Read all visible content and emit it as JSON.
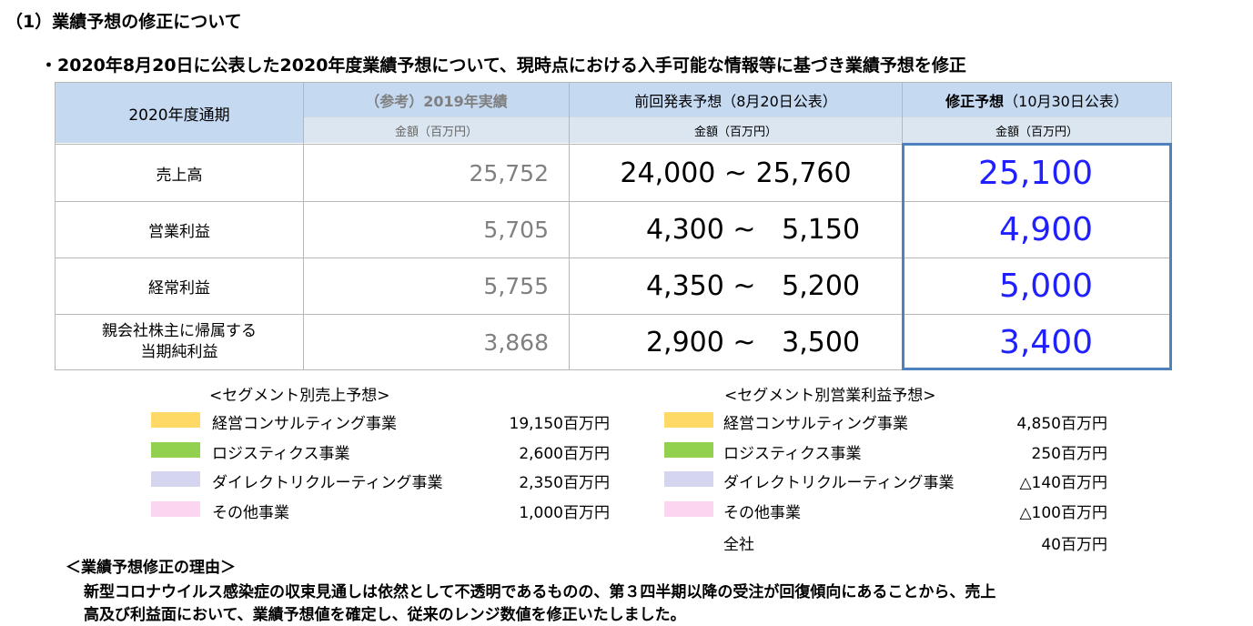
{
  "heading": {
    "title": "（1）業績予想の修正について",
    "subtitle": "・2020年8月20日に公表した2020年度業績予想について、現時点における入手可能な情報等に基づき業績予想を修正"
  },
  "table": {
    "corner_label": "2020年度通期",
    "columns": [
      {
        "header": "（参考）2019年実績",
        "unit": "金額（百万円）"
      },
      {
        "header": "前回発表予想（8月20日公表）",
        "unit": "金額（百万円）"
      },
      {
        "header_bold": "修正予想",
        "header_rest": "（10月30日公表）",
        "unit": "金額（百万円）"
      }
    ],
    "rows": [
      {
        "label": "売上高",
        "prev_actual": "25,752",
        "range_low": "24,000",
        "range_sep": "~",
        "range_high": "25,760",
        "revised": "25,100"
      },
      {
        "label": "営業利益",
        "prev_actual": "5,705",
        "range_low": "4,300",
        "range_sep": "~",
        "range_high": "5,150",
        "revised": "4,900"
      },
      {
        "label": "経常利益",
        "prev_actual": "5,755",
        "range_low": "4,350",
        "range_sep": "~",
        "range_high": "5,200",
        "revised": "5,000"
      },
      {
        "label_line1": "親会社株主に帰属する",
        "label_line2": "当期純利益",
        "prev_actual": "3,868",
        "range_low": "2,900",
        "range_sep": "~",
        "range_high": "3,500",
        "revised": "3,400"
      }
    ]
  },
  "segments": {
    "sales": {
      "title": "<セグメント別売上予想>",
      "items": [
        {
          "name": "経営コンサルティング事業",
          "value": "19,150百万円",
          "color": "#ffd966"
        },
        {
          "name": "ロジスティクス事業",
          "value": "2,600百万円",
          "color": "#92d050"
        },
        {
          "name": "ダイレクトリクルーティング事業",
          "value": "2,350百万円",
          "color": "#d5d5f0"
        },
        {
          "name": "その他事業",
          "value": "1,000百万円",
          "color": "#fcd5f0"
        }
      ]
    },
    "operating_profit": {
      "title": "<セグメント別営業利益予想>",
      "items": [
        {
          "name": "経営コンサルティング事業",
          "value": "4,850百万円",
          "color": "#ffd966"
        },
        {
          "name": "ロジスティクス事業",
          "value": "250百万円",
          "color": "#92d050"
        },
        {
          "name": "ダイレクトリクルーティング事業",
          "value": "△140百万円",
          "color": "#d5d5f0"
        },
        {
          "name": "その他事業",
          "value": "△100百万円",
          "color": "#fcd5f0"
        }
      ],
      "total_label": "全社",
      "total_value": "40百万円"
    }
  },
  "reason": {
    "title": "＜業績予想修正の理由＞",
    "line1": "新型コロナウイルス感染症の収束見通しは依然として不透明であるものの、第３四半期以降の受注が回復傾向にあることから、売上",
    "line2": "高及び利益面において、業績予想値を確定し、従来のレンジ数値を修正いたしました。"
  },
  "colors": {
    "header_bg": "#c5d9f1",
    "subheader_bg": "#dce6f1",
    "revised_text": "#1f1fff",
    "highlight_border": "#4f81bd"
  }
}
